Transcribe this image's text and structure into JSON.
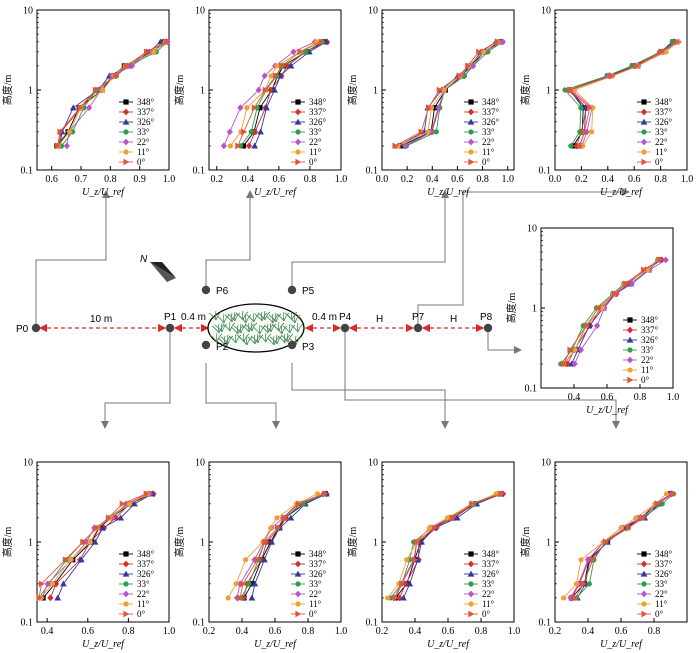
{
  "chart_data": {
    "type": "line",
    "yaxis": {
      "label": "高度/m",
      "scale": "log",
      "range": [
        0.1,
        10
      ],
      "ticks": [
        "0.1",
        "1",
        "10"
      ]
    },
    "xaxis_label": "U_z/U_ref",
    "legend": [
      "348°",
      "337°",
      "326°",
      "33°",
      "22°",
      "11°",
      "0°"
    ],
    "heights": [
      0.2,
      0.3,
      0.6,
      1.0,
      1.5,
      2.0,
      3.0,
      4.0
    ],
    "colors": [
      "#000000",
      "#d62c2c",
      "#3737a0",
      "#2e9d4a",
      "#b356c9",
      "#f0a02e",
      "#e2543c"
    ],
    "panels": [
      {
        "id": "P0",
        "xlim": [
          0.55,
          1.0
        ],
        "xticks": [
          "0.6",
          "0.7",
          "0.8",
          "0.9",
          "1.0"
        ],
        "base": [
          0.63,
          0.65,
          0.7,
          0.76,
          0.81,
          0.86,
          0.94,
          0.99
        ],
        "offsets": [
          0,
          -0.005,
          -0.012,
          0.008,
          0.013,
          0.004,
          -0.008
        ]
      },
      {
        "id": "P6",
        "xlim": [
          0.15,
          1.0
        ],
        "xticks": [
          "0.2",
          "0.4",
          "0.6",
          "0.8",
          "1.0"
        ],
        "base": [
          0.36,
          0.41,
          0.46,
          0.53,
          0.58,
          0.63,
          0.76,
          0.88
        ],
        "offsets": [
          0.02,
          0.04,
          0.06,
          0.0,
          -0.1,
          -0.05,
          -0.02
        ]
      },
      {
        "id": "P5",
        "xlim": [
          0.0,
          1.05
        ],
        "xticks": [
          "0.0",
          "0.2",
          "0.4",
          "0.6",
          "0.8",
          "1.0"
        ],
        "base": [
          0.14,
          0.36,
          0.4,
          0.48,
          0.62,
          0.7,
          0.8,
          0.93
        ],
        "offsets": [
          0.02,
          0.04,
          -0.02,
          0.05,
          0.03,
          0.0,
          -0.03
        ]
      },
      {
        "id": "P1",
        "xlim": [
          0.35,
          1.0
        ],
        "xticks": [
          "0.4",
          "0.6",
          "0.8",
          "1.0"
        ],
        "base": [
          0.38,
          0.42,
          0.52,
          0.6,
          0.65,
          0.72,
          0.8,
          0.9
        ],
        "offsets": [
          0.01,
          0.03,
          0.05,
          -0.02,
          -0.01,
          0.0,
          -0.03
        ]
      },
      {
        "id": "P2",
        "xlim": [
          0.2,
          1.0
        ],
        "xticks": [
          "0.2",
          "0.4",
          "0.6",
          "0.8",
          "1.0"
        ],
        "base": [
          0.4,
          0.43,
          0.5,
          0.55,
          0.61,
          0.66,
          0.76,
          0.9
        ],
        "offsets": [
          0.02,
          0.01,
          0.04,
          0.0,
          -0.03,
          -0.06,
          -0.01
        ]
      },
      {
        "id": "P3",
        "xlim": [
          0.2,
          1.0
        ],
        "xticks": [
          "0.2",
          "0.4",
          "0.6",
          "0.8",
          "1.0"
        ],
        "base": [
          0.27,
          0.32,
          0.38,
          0.41,
          0.5,
          0.62,
          0.75,
          0.91
        ],
        "offsets": [
          0.02,
          0.03,
          0.04,
          -0.01,
          0.0,
          -0.02,
          0.01
        ]
      },
      {
        "id": "P4",
        "xlim": [
          0.2,
          1.0
        ],
        "xticks": [
          "0.2",
          "0.4",
          "0.6",
          "0.8"
        ],
        "base": [
          0.3,
          0.36,
          0.4,
          0.5,
          0.62,
          0.72,
          0.82,
          0.9
        ],
        "offsets": [
          0.01,
          0.0,
          0.02,
          0.03,
          -0.01,
          -0.03,
          0.02
        ]
      },
      {
        "id": "P8",
        "xlim": [
          0.2,
          1.0
        ],
        "xticks": [
          "0.4",
          "0.6",
          "0.8",
          "1.0"
        ],
        "base": [
          0.35,
          0.4,
          0.48,
          0.56,
          0.64,
          0.72,
          0.84,
          0.92
        ],
        "offsets": [
          0.0,
          0.01,
          0.02,
          -0.02,
          0.04,
          0.0,
          -0.01
        ]
      },
      {
        "id": "P7",
        "xlim": [
          0.0,
          1.0
        ],
        "xticks": [
          "0.0",
          "0.2",
          "0.4",
          "0.6",
          "0.8",
          "1.0"
        ],
        "base": [
          0.15,
          0.2,
          0.22,
          0.1,
          0.4,
          0.6,
          0.8,
          0.9
        ],
        "offsets": [
          0.0,
          0.01,
          0.02,
          -0.02,
          0.04,
          0.06,
          0.03
        ]
      }
    ]
  },
  "layout_labels": {
    "points": [
      "P0",
      "P1",
      "P2",
      "P3",
      "P4",
      "P5",
      "P6",
      "P7",
      "P8"
    ],
    "dist_10m": "10 m",
    "dist_04m_left": "0.4 m",
    "dist_04m_right": "0.4 m",
    "dist_H1": "H",
    "dist_H2": "H",
    "north": "N"
  }
}
